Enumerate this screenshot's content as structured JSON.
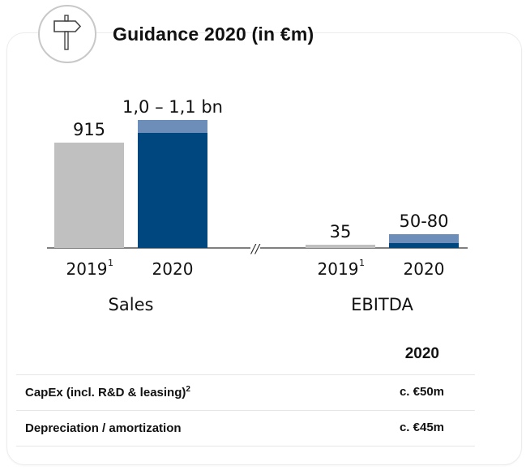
{
  "header": {
    "title": "Guidance 2020 (in €m)",
    "icon": "signpost-icon"
  },
  "colors": {
    "actual_bar": "#c0c0c0",
    "guidance_low": "#00467f",
    "guidance_range": "#6d8eb8",
    "axis": "#333333"
  },
  "chart_data": {
    "type": "bar",
    "title": "Guidance 2020 (in €m)",
    "groups": [
      {
        "name": "Sales",
        "categories": [
          {
            "label": "2019",
            "footnote": "1",
            "value": 915,
            "data_label": "915",
            "kind": "actual"
          },
          {
            "label": "2020",
            "footnote": "",
            "range": [
              1000,
              1100
            ],
            "data_label": "1,0 – 1,1 bn",
            "kind": "guidance"
          }
        ]
      },
      {
        "name": "EBITDA",
        "categories": [
          {
            "label": "2019",
            "footnote": "1",
            "value": 35,
            "data_label": "35",
            "kind": "actual"
          },
          {
            "label": "2020",
            "footnote": "",
            "range": [
              50,
              80
            ],
            "data_label": "50-80",
            "kind": "guidance"
          }
        ]
      }
    ],
    "axis_break": "//",
    "xlabel": "",
    "ylabel": "",
    "grid": false,
    "legend": "none"
  },
  "table": {
    "column_header": "2020",
    "rows": [
      {
        "label": "CapEx (incl. R&D & leasing)",
        "footnote": "2",
        "value": "c. €50m"
      },
      {
        "label": "Depreciation / amortization",
        "footnote": "",
        "value": "c. €45m"
      }
    ]
  }
}
